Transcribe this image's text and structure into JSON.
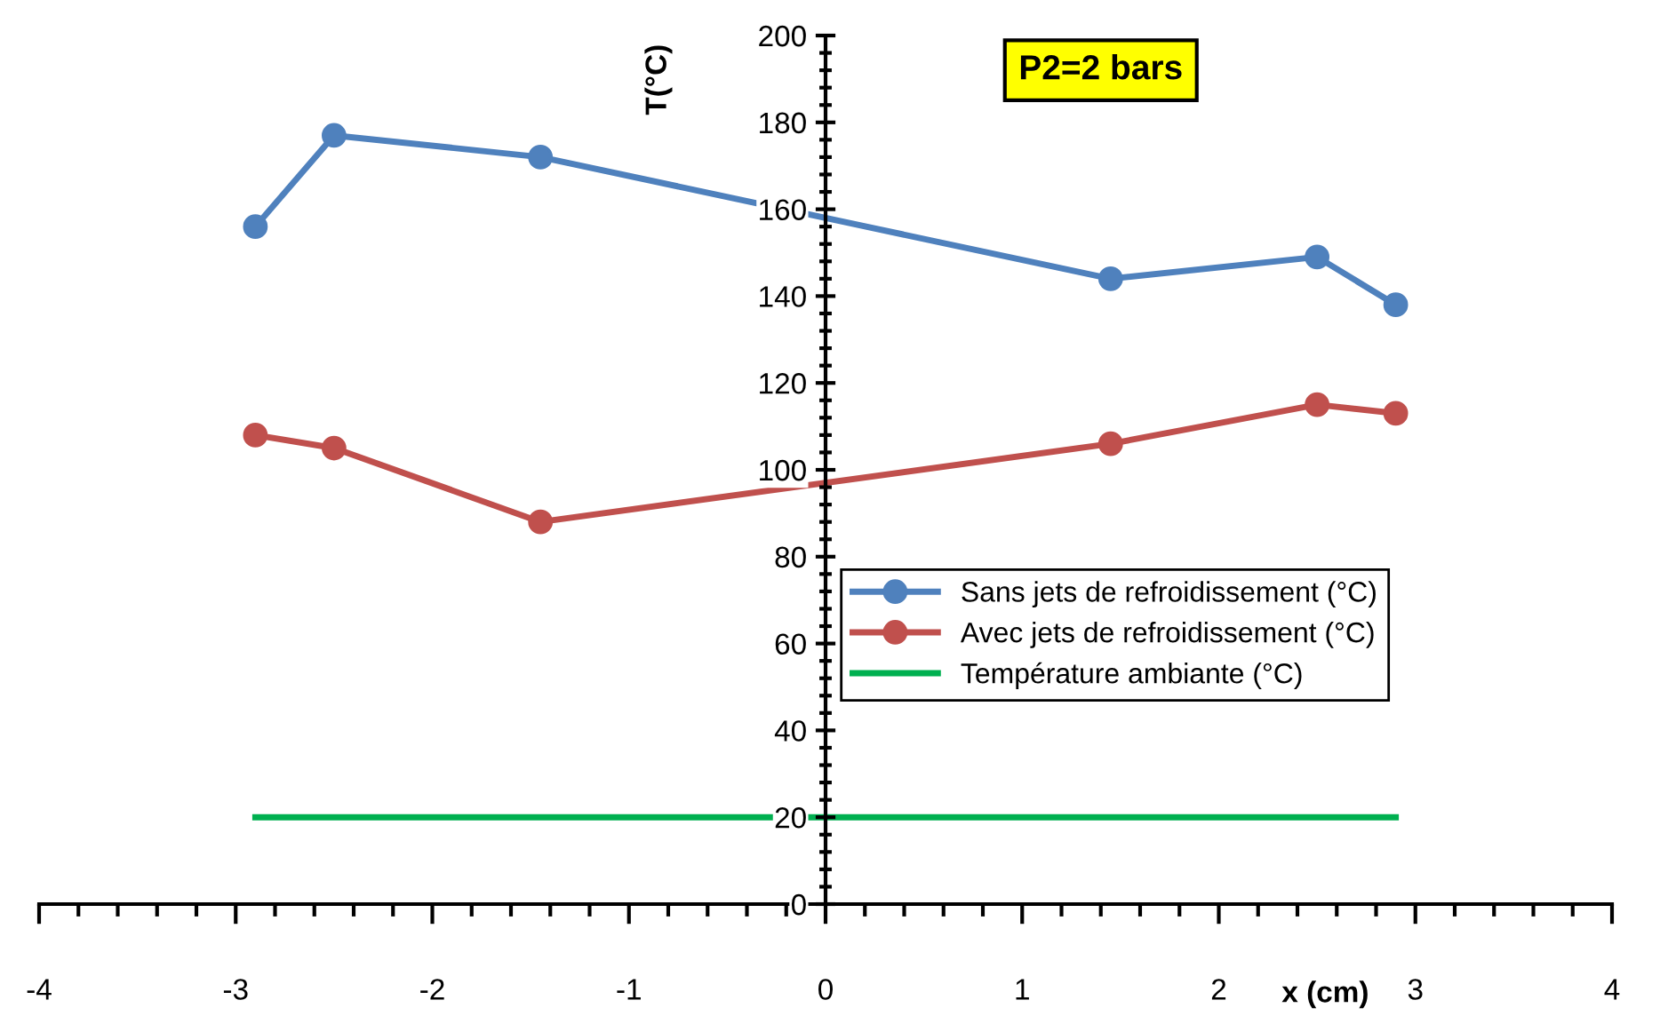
{
  "chart_data": {
    "type": "line",
    "xlabel": "x (cm)",
    "ylabel": "T(°C)",
    "annotations": [
      "P2=2 bars"
    ],
    "xlim": [
      -4,
      4
    ],
    "xticks": [
      -4,
      -3,
      -2,
      -1,
      0,
      1,
      2,
      3,
      4
    ],
    "ylim": [
      0,
      200
    ],
    "yticks": [
      0,
      20,
      40,
      60,
      80,
      100,
      120,
      140,
      160,
      180,
      200
    ],
    "grid": false,
    "legend": "right",
    "line_style": "solid",
    "series": [
      {
        "name": "Sans jets de refroidissement (°C)",
        "color": "#4f81bd",
        "marker": "circle",
        "x": [
          -2.9,
          -2.5,
          -1.45,
          1.45,
          2.5,
          2.9
        ],
        "values": [
          156,
          177,
          172,
          144,
          149,
          138
        ]
      },
      {
        "name": "Avec jets de refroidissement (°C)",
        "color": "#c0504d",
        "marker": "circle",
        "x": [
          -2.9,
          -2.5,
          -1.45,
          1.45,
          2.5,
          2.9
        ],
        "values": [
          108,
          105,
          88,
          106,
          115,
          113
        ]
      },
      {
        "name": "Température ambiante (°C)",
        "color": "#00b050",
        "marker": "none",
        "x": [
          -2.9,
          2.9
        ],
        "values": [
          20,
          20
        ]
      }
    ]
  }
}
